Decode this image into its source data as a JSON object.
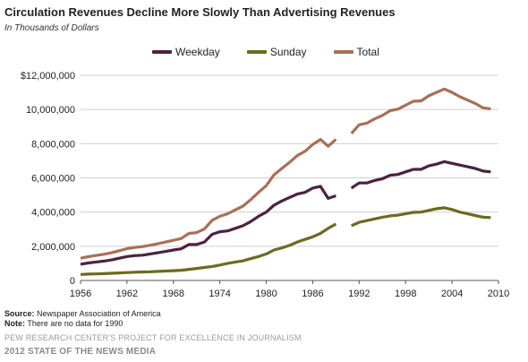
{
  "header": {
    "title": "Circulation Revenues  Decline More Slowly Than Advertising  Revenues",
    "subtitle": "In Thousands of Dollars"
  },
  "legend": [
    {
      "name": "Weekday",
      "color": "#4a2340"
    },
    {
      "name": "Sunday",
      "color": "#6b6b1f"
    },
    {
      "name": "Total",
      "color": "#a96f57"
    }
  ],
  "source": {
    "source_label": "Source:",
    "source_text": "Newspaper Association of America",
    "note_label": "Note:",
    "note_text": "There are no data for 1990"
  },
  "footer": {
    "line1": "PEW RESEARCH CENTER'S PROJECT FOR EXCELLENCE IN JOURNALISM",
    "line2": "2012 STATE OF THE NEWS MEDIA"
  },
  "chart_data": {
    "type": "line",
    "title": "Circulation Revenues  Decline More Slowly Than Advertising  Revenues",
    "subtitle": "In Thousands of Dollars",
    "xlim": [
      1956,
      2010
    ],
    "ylim": [
      0,
      12000000
    ],
    "x_ticks": [
      "1956",
      "1962",
      "1968",
      "1974",
      "1980",
      "1986",
      "1992",
      "1998",
      "2004",
      "2010"
    ],
    "y_ticks": [
      "0",
      "2,000,000",
      "4,000,000",
      "6,000,000",
      "8,000,000",
      "10,000,000",
      "$12,000,000"
    ],
    "y_tick_values": [
      0,
      2000000,
      4000000,
      6000000,
      8000000,
      10000000,
      12000000
    ],
    "x_tick_values": [
      1956,
      1962,
      1968,
      1974,
      1980,
      1986,
      1992,
      1998,
      2004,
      2010
    ],
    "grid": "horizontal",
    "legend_position": "top",
    "gap_year": 1990,
    "series": [
      {
        "name": "Weekday",
        "color": "#4a2340",
        "x": [
          1956,
          1957,
          1958,
          1959,
          1960,
          1961,
          1962,
          1963,
          1964,
          1965,
          1966,
          1967,
          1968,
          1969,
          1970,
          1971,
          1972,
          1973,
          1974,
          1975,
          1976,
          1977,
          1978,
          1979,
          1980,
          1981,
          1982,
          1983,
          1984,
          1985,
          1986,
          1987,
          1988,
          1989,
          1991,
          1992,
          1993,
          1994,
          1995,
          1996,
          1997,
          1998,
          1999,
          2000,
          2001,
          2002,
          2003,
          2004,
          2005,
          2006,
          2007,
          2008,
          2009
        ],
        "y": [
          950000,
          1020000,
          1080000,
          1130000,
          1200000,
          1300000,
          1400000,
          1450000,
          1480000,
          1550000,
          1620000,
          1700000,
          1780000,
          1850000,
          2100000,
          2100000,
          2250000,
          2700000,
          2850000,
          2900000,
          3050000,
          3200000,
          3450000,
          3750000,
          4000000,
          4400000,
          4650000,
          4850000,
          5050000,
          5150000,
          5400000,
          5500000,
          4800000,
          4950000,
          5400000,
          5700000,
          5700000,
          5850000,
          5950000,
          6150000,
          6200000,
          6350000,
          6500000,
          6500000,
          6700000,
          6800000,
          6950000,
          6850000,
          6750000,
          6650000,
          6550000,
          6400000,
          6350000
        ],
        "gap_after": 1989
      },
      {
        "name": "Sunday",
        "color": "#6b6b1f",
        "x": [
          1956,
          1957,
          1958,
          1959,
          1960,
          1961,
          1962,
          1963,
          1964,
          1965,
          1966,
          1967,
          1968,
          1969,
          1970,
          1971,
          1972,
          1973,
          1974,
          1975,
          1976,
          1977,
          1978,
          1979,
          1980,
          1981,
          1982,
          1983,
          1984,
          1985,
          1986,
          1987,
          1988,
          1989,
          1991,
          1992,
          1993,
          1994,
          1995,
          1996,
          1997,
          1998,
          1999,
          2000,
          2001,
          2002,
          2003,
          2004,
          2005,
          2006,
          2007,
          2008,
          2009
        ],
        "y": [
          350000,
          370000,
          380000,
          400000,
          420000,
          440000,
          460000,
          480000,
          500000,
          510000,
          530000,
          550000,
          570000,
          600000,
          650000,
          700000,
          760000,
          820000,
          900000,
          1000000,
          1080000,
          1150000,
          1280000,
          1400000,
          1550000,
          1780000,
          1900000,
          2050000,
          2250000,
          2400000,
          2550000,
          2750000,
          3050000,
          3300000,
          3200000,
          3400000,
          3500000,
          3600000,
          3700000,
          3780000,
          3820000,
          3900000,
          3980000,
          4000000,
          4100000,
          4200000,
          4250000,
          4150000,
          4000000,
          3900000,
          3800000,
          3700000,
          3680000
        ],
        "gap_after": 1989
      },
      {
        "name": "Total",
        "color": "#a96f57",
        "x": [
          1956,
          1957,
          1958,
          1959,
          1960,
          1961,
          1962,
          1963,
          1964,
          1965,
          1966,
          1967,
          1968,
          1969,
          1970,
          1971,
          1972,
          1973,
          1974,
          1975,
          1976,
          1977,
          1978,
          1979,
          1980,
          1981,
          1982,
          1983,
          1984,
          1985,
          1986,
          1987,
          1988,
          1989,
          1991,
          1992,
          1993,
          1994,
          1995,
          1996,
          1997,
          1998,
          1999,
          2000,
          2001,
          2002,
          2003,
          2004,
          2005,
          2006,
          2007,
          2008,
          2009
        ],
        "y": [
          1300000,
          1390000,
          1460000,
          1530000,
          1620000,
          1740000,
          1860000,
          1930000,
          1980000,
          2060000,
          2150000,
          2250000,
          2350000,
          2450000,
          2750000,
          2800000,
          3010000,
          3520000,
          3750000,
          3900000,
          4130000,
          4350000,
          4730000,
          5150000,
          5550000,
          6180000,
          6550000,
          6900000,
          7300000,
          7550000,
          7950000,
          8250000,
          7850000,
          8250000,
          8600000,
          9100000,
          9200000,
          9450000,
          9650000,
          9930000,
          10020000,
          10250000,
          10480000,
          10500000,
          10800000,
          11000000,
          11200000,
          11000000,
          10750000,
          10550000,
          10350000,
          10100000,
          10030000
        ],
        "gap_after": 1989
      }
    ]
  }
}
